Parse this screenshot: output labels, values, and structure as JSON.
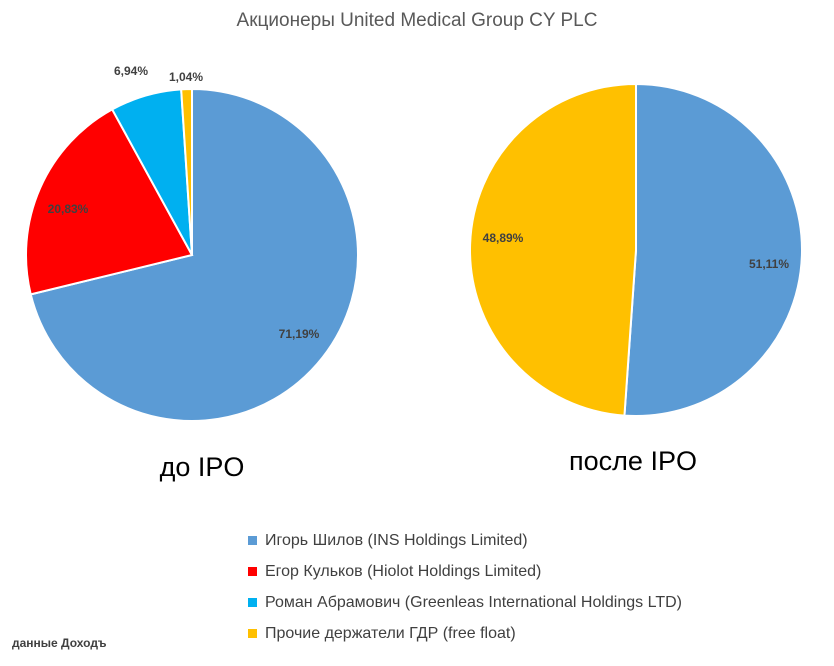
{
  "title": "Акционеры United Medical Group CY PLC",
  "source_note": "данные Доходъ",
  "legend": {
    "items": [
      {
        "label": "Игорь Шилов (INS Holdings Limited)",
        "color": "#5b9bd5"
      },
      {
        "label": "Егор Кульков (Hiolot Holdings Limited)",
        "color": "#ff0000"
      },
      {
        "label": "Роман Абрамович (Greenleas International Holdings LTD)",
        "color": "#00b0f0"
      },
      {
        "label": "Прочие держатели ГДР (free float)",
        "color": "#ffc000"
      }
    ]
  },
  "chart_data": [
    {
      "type": "pie",
      "caption": "до IPO",
      "slices": [
        {
          "series": "Игорь Шилов (INS Holdings Limited)",
          "value": 71.19,
          "label": "71,19%",
          "color": "#5b9bd5"
        },
        {
          "series": "Егор Кульков (Hiolot Holdings Limited)",
          "value": 20.83,
          "label": "20,83%",
          "color": "#ff0000"
        },
        {
          "series": "Роман Абрамович (Greenleas International Holdings LTD)",
          "value": 6.94,
          "label": "6,94%",
          "color": "#00b0f0"
        },
        {
          "series": "Прочие держатели ГДР (free float)",
          "value": 1.04,
          "label": "1,04%",
          "color": "#ffc000"
        }
      ]
    },
    {
      "type": "pie",
      "caption": "после IPO",
      "slices": [
        {
          "series": "Игорь Шилов (INS Holdings Limited)",
          "value": 51.11,
          "label": "51,11%",
          "color": "#5b9bd5"
        },
        {
          "series": "Прочие держатели ГДР (free float)",
          "value": 48.89,
          "label": "48,89%",
          "color": "#ffc000"
        }
      ]
    }
  ]
}
